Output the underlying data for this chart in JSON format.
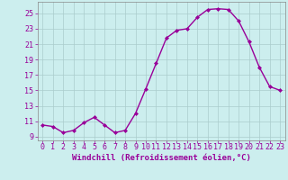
{
  "x": [
    0,
    1,
    2,
    3,
    4,
    5,
    6,
    7,
    8,
    9,
    10,
    11,
    12,
    13,
    14,
    15,
    16,
    17,
    18,
    19,
    20,
    21,
    22,
    23
  ],
  "y": [
    10.5,
    10.3,
    9.5,
    9.8,
    10.8,
    11.5,
    10.5,
    9.5,
    9.8,
    12.0,
    15.2,
    18.5,
    21.8,
    22.8,
    23.0,
    24.5,
    25.5,
    25.6,
    25.5,
    24.0,
    21.3,
    18.0,
    15.5,
    15.0
  ],
  "line_color": "#990099",
  "marker": "D",
  "marker_size": 2.0,
  "bg_color": "#cceeee",
  "grid_color": "#aacccc",
  "xlabel": "Windchill (Refroidissement éolien,°C)",
  "xlabel_color": "#990099",
  "xlabel_fontsize": 6.5,
  "xtick_labels": [
    "0",
    "1",
    "2",
    "3",
    "4",
    "5",
    "6",
    "7",
    "8",
    "9",
    "10",
    "11",
    "12",
    "13",
    "14",
    "15",
    "16",
    "17",
    "18",
    "19",
    "20",
    "21",
    "22",
    "23"
  ],
  "ytick_labels": [
    "9",
    "11",
    "13",
    "15",
    "17",
    "19",
    "21",
    "23",
    "25"
  ],
  "ytick_vals": [
    9,
    11,
    13,
    15,
    17,
    19,
    21,
    23,
    25
  ],
  "ylim": [
    8.5,
    26.5
  ],
  "xlim": [
    -0.5,
    23.5
  ],
  "tick_fontsize": 6.0,
  "tick_color": "#990099",
  "spine_color": "#888888",
  "linewidth": 1.0
}
